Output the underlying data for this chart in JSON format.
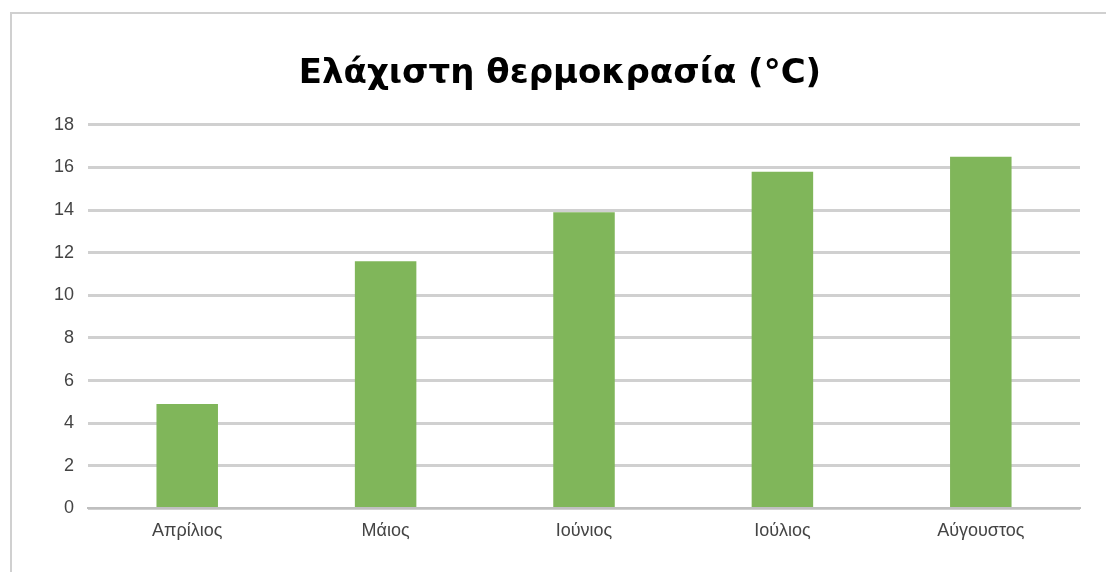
{
  "chart_data": {
    "type": "bar",
    "title": "Ελάχιστη θερμοκρασία (°C)",
    "categories": [
      "Απρίλιος",
      "Μάιος",
      "Ιούνιος",
      "Ιούλιος",
      "Αύγουστος"
    ],
    "values": [
      4.9,
      11.6,
      13.9,
      15.8,
      16.5
    ],
    "color": "#80b65a",
    "ylim": [
      0,
      18
    ],
    "yticks": [
      0,
      2,
      4,
      6,
      8,
      10,
      12,
      14,
      16,
      18
    ],
    "grid": "y",
    "legend": false
  }
}
